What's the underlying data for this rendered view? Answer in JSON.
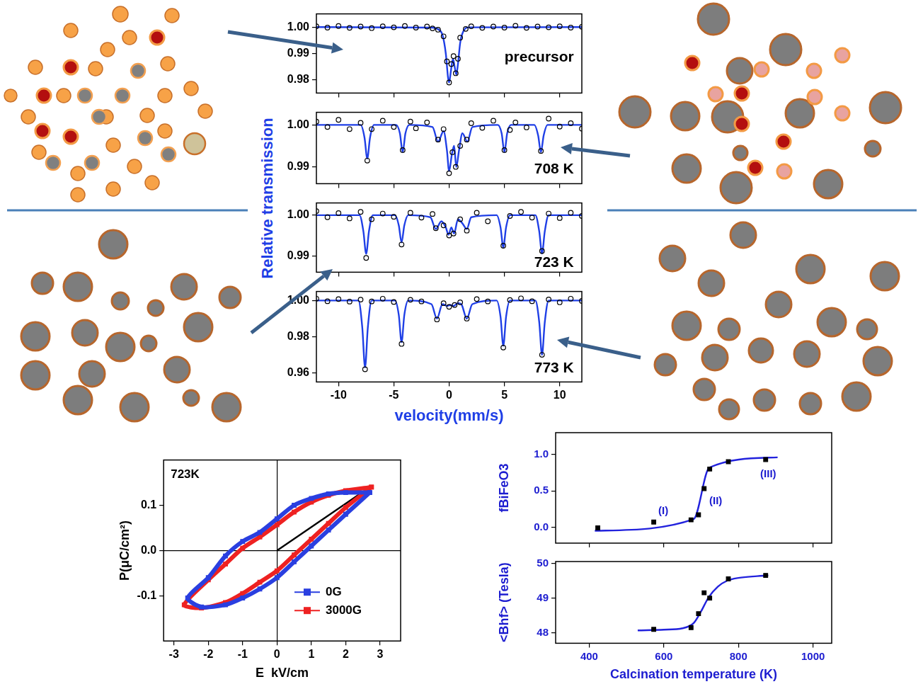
{
  "chart_data": [
    {
      "type": "line",
      "ylabel": "Relative transmission",
      "annotations": [
        "precursor"
      ],
      "xlim": [
        -12,
        12
      ],
      "xticks": [
        -10,
        -5,
        0,
        5,
        10
      ],
      "ylim": [
        0.975,
        1.005
      ],
      "yticks": [
        0.98,
        0.99,
        {
          "value": 1,
          "label": "1.00"
        }
      ],
      "tick_labels": "y",
      "series": [
        {
          "type": "scatter",
          "marker": "open_circle",
          "color": "#000000",
          "x": [
            -12,
            -11,
            -10,
            -9,
            -8,
            -7,
            -6,
            -5,
            -4,
            -3,
            -2,
            -1.5,
            -1,
            -0.5,
            -0.2,
            0,
            0.2,
            0.4,
            0.6,
            0.8,
            1,
            1.5,
            2,
            3,
            4,
            5,
            6,
            7,
            8,
            9,
            10,
            11,
            12
          ],
          "values": [
            1.0003,
            0.9998,
            1.0004,
            0.9997,
            1.0002,
            0.9996,
            1.0003,
            0.9999,
            1.0004,
            0.9998,
            1.0002,
            0.9995,
            0.999,
            0.9965,
            0.987,
            0.979,
            0.986,
            0.989,
            0.9825,
            0.988,
            0.996,
            0.9993,
            1.0003,
            0.9997,
            1.0002,
            0.9998,
            1.0005,
            0.9997,
            1.0002,
            0.9999,
            1.0003,
            0.9998,
            1.0001
          ]
        },
        {
          "type": "line",
          "color": "#1f3fe6",
          "x": [
            -12,
            -1.5,
            -1,
            -0.6,
            -0.3,
            -0.1,
            0,
            0.15,
            0.35,
            0.5,
            0.65,
            0.8,
            1.0,
            1.3,
            1.8,
            12
          ],
          "values": [
            1.0,
            0.9998,
            0.9992,
            0.997,
            0.99,
            0.981,
            0.979,
            0.983,
            0.988,
            0.985,
            0.982,
            0.986,
            0.994,
            0.9985,
            0.9999,
            1.0
          ]
        }
      ]
    },
    {
      "type": "line",
      "annotations": [
        "708 K"
      ],
      "xlim": [
        -12,
        12
      ],
      "xticks": [
        -10,
        -5,
        0,
        5,
        10
      ],
      "ylim": [
        0.986,
        1.003
      ],
      "yticks": [
        0.99,
        {
          "value": 1,
          "label": "1.00"
        }
      ],
      "tick_labels": "y",
      "series": [
        {
          "type": "scatter",
          "marker": "open_circle",
          "color": "#000000",
          "x": [
            -12,
            -11,
            -10,
            -9,
            -8,
            -7.4,
            -7,
            -6,
            -5,
            -4.2,
            -3.5,
            -3,
            -2,
            -1,
            -0.5,
            0,
            0.3,
            0.6,
            1,
            1.6,
            2,
            3,
            4,
            5,
            5.5,
            6,
            7,
            8.3,
            9,
            10,
            11,
            12
          ],
          "values": [
            1.0008,
            0.9995,
            1.0012,
            0.999,
            1.0005,
            0.9915,
            0.999,
            1.001,
            0.9995,
            0.994,
            1.0008,
            0.9992,
            1.0006,
            0.9965,
            0.999,
            0.9885,
            0.9935,
            0.99,
            0.995,
            0.9965,
            1.0004,
            0.9993,
            1.001,
            0.994,
            0.9988,
            1.0006,
            0.9994,
            0.9938,
            1.0015,
            0.9996,
            1.0004,
            0.9991
          ]
        },
        {
          "type": "line",
          "color": "#1f3fe6",
          "x": [
            -12,
            -8.0,
            -7.65,
            -7.4,
            -7.15,
            -6.8,
            -4.8,
            -4.45,
            -4.2,
            -3.95,
            -3.6,
            -1.5,
            -1.0,
            -0.5,
            -0.2,
            0,
            0.25,
            0.45,
            0.65,
            0.9,
            1.2,
            1.65,
            2.1,
            4.4,
            4.75,
            5.0,
            5.25,
            5.6,
            7.7,
            8.05,
            8.3,
            8.55,
            8.9,
            12
          ],
          "values": [
            1.0,
            1.0,
            0.997,
            0.992,
            0.997,
            1.0,
            1.0,
            0.998,
            0.9935,
            0.998,
            1.0,
            0.9995,
            0.996,
            0.9985,
            0.994,
            0.989,
            0.993,
            0.995,
            0.99,
            0.994,
            0.998,
            0.996,
            0.9995,
            1.0,
            0.998,
            0.9935,
            0.998,
            1.0,
            1.0,
            0.9975,
            0.9935,
            0.9975,
            1.0,
            1.0
          ]
        }
      ]
    },
    {
      "type": "line",
      "annotations": [
        "723 K"
      ],
      "xlim": [
        -12,
        12
      ],
      "xticks": [
        -10,
        -5,
        0,
        5,
        10
      ],
      "ylim": [
        0.986,
        1.003
      ],
      "yticks": [
        0.99,
        {
          "value": 1,
          "label": "1.00"
        }
      ],
      "tick_labels": "y",
      "series": [
        {
          "type": "scatter",
          "marker": "open_circle",
          "color": "#000000",
          "x": [
            -12,
            -11,
            -10,
            -9,
            -8,
            -7.5,
            -7,
            -6,
            -5,
            -4.3,
            -3.5,
            -2.5,
            -1.5,
            -1.2,
            -0.5,
            0,
            0.4,
            1,
            1.6,
            2.5,
            3.5,
            4.9,
            5.5,
            6.5,
            7.5,
            8.4,
            9,
            10,
            11,
            12
          ],
          "values": [
            1.001,
            0.9995,
            1.0005,
            0.9992,
            1.0008,
            0.9895,
            0.999,
            1.0004,
            0.9996,
            0.9928,
            1.0006,
            0.9994,
            1.0003,
            0.9968,
            0.9975,
            0.995,
            0.9955,
            0.999,
            0.9962,
            1.0006,
            0.9985,
            0.9925,
            0.9998,
            1.0008,
            0.9994,
            0.9912,
            1.0004,
            0.9993,
            1.0006,
            0.9998
          ]
        },
        {
          "type": "line",
          "color": "#1f3fe6",
          "x": [
            -12,
            -8.1,
            -7.75,
            -7.5,
            -7.25,
            -6.9,
            -4.9,
            -4.55,
            -4.3,
            -4.05,
            -3.7,
            -1.7,
            -1.2,
            -0.7,
            -0.3,
            -0.05,
            0.2,
            0.45,
            0.8,
            1.2,
            1.6,
            2.0,
            4.3,
            4.65,
            4.9,
            5.15,
            5.5,
            7.8,
            8.15,
            8.4,
            8.65,
            9.0,
            12
          ],
          "values": [
            1.0,
            1.0,
            0.996,
            0.9905,
            0.996,
            1.0,
            1.0,
            0.9975,
            0.9933,
            0.9975,
            1.0,
            0.9995,
            0.9966,
            0.9985,
            0.997,
            0.9952,
            0.997,
            0.9955,
            0.999,
            0.998,
            0.9966,
            0.9995,
            1.0,
            0.997,
            0.9921,
            0.997,
            1.0,
            1.0,
            0.996,
            0.9906,
            0.996,
            1.0,
            1.0
          ]
        }
      ]
    },
    {
      "type": "line",
      "annotations": [
        "773 K"
      ],
      "xlabel": "velocity(mm/s)",
      "xlim": [
        -12,
        12
      ],
      "xticks": [
        -10,
        -5,
        0,
        5,
        10
      ],
      "ylim": [
        0.955,
        1.005
      ],
      "yticks": [
        0.96,
        0.98,
        {
          "value": 1,
          "label": "1.00"
        }
      ],
      "series": [
        {
          "type": "scatter",
          "marker": "open_circle",
          "color": "#000000",
          "x": [
            -12,
            -11,
            -10,
            -9,
            -8,
            -7.6,
            -7,
            -6,
            -5,
            -4.3,
            -3.5,
            -2.5,
            -1.1,
            -0.5,
            0,
            0.5,
            1,
            1.6,
            2.5,
            3.5,
            4.9,
            5.5,
            6.5,
            7.5,
            8.4,
            9,
            10,
            11,
            12
          ],
          "values": [
            1.001,
            0.9996,
            1.0008,
            0.9994,
            1.0005,
            0.962,
            0.9995,
            1.001,
            0.9992,
            0.976,
            1.0004,
            0.9995,
            0.9895,
            0.9985,
            0.9965,
            0.9975,
            0.999,
            0.99,
            1.0008,
            0.9995,
            0.974,
            1.0003,
            1.0012,
            0.9996,
            0.97,
            1.0006,
            0.999,
            1.001,
            0.9998
          ]
        },
        {
          "type": "line",
          "color": "#1f3fe6",
          "x": [
            -12,
            -8.2,
            -7.85,
            -7.6,
            -7.35,
            -7.0,
            -4.9,
            -4.55,
            -4.3,
            -4.05,
            -3.7,
            -1.6,
            -1.1,
            -0.6,
            -0.2,
            0.1,
            0.4,
            0.8,
            1.1,
            1.6,
            2.1,
            4.3,
            4.65,
            4.9,
            5.15,
            5.5,
            7.8,
            8.15,
            8.4,
            8.65,
            9.0,
            12
          ],
          "values": [
            1.0,
            1.0,
            0.985,
            0.963,
            0.985,
            1.0,
            1.0,
            0.992,
            0.977,
            0.992,
            1.0,
            0.998,
            0.99,
            0.998,
            0.997,
            0.9975,
            0.997,
            0.9985,
            0.998,
            0.99,
            0.998,
            1.0,
            0.991,
            0.975,
            0.991,
            1.0,
            1.0,
            0.988,
            0.97,
            0.988,
            1.0,
            1.0
          ]
        }
      ]
    },
    {
      "type": "line",
      "annotations": [
        "723K"
      ],
      "xlabel": "E  kV/cm",
      "ylabel": "P(μC/cm²)",
      "xlim": [
        -3.3,
        3.6
      ],
      "xticks": [
        -3,
        -2,
        -1,
        0,
        1,
        2,
        3
      ],
      "ylim": [
        -0.2,
        0.2
      ],
      "yticks": [
        -0.1,
        {
          "value": 0,
          "label": "0.0"
        },
        0.1
      ],
      "legend": "lower right",
      "series": [
        {
          "name": "0G",
          "color": "#2a3fe0",
          "marker": "square",
          "x": [
            2.7,
            2.0,
            1.5,
            1.0,
            0.5,
            0,
            -0.5,
            -1.0,
            -1.5,
            -2.0,
            -2.6,
            -2.2,
            -1.5,
            -1.0,
            -0.5,
            0,
            0.5,
            1.0,
            1.5,
            2.0,
            2.7
          ],
          "values": [
            0.128,
            0.128,
            0.125,
            0.115,
            0.1,
            0.07,
            0.04,
            0.02,
            -0.012,
            -0.06,
            -0.105,
            -0.125,
            -0.12,
            -0.105,
            -0.085,
            -0.06,
            -0.025,
            0.01,
            0.045,
            0.08,
            0.128
          ]
        },
        {
          "name": "3000G",
          "color": "#ee2222",
          "marker": "square",
          "x": [
            2.75,
            2.0,
            1.5,
            1.0,
            0.5,
            0,
            -0.5,
            -1.0,
            -1.5,
            -2.0,
            -2.7,
            -2.2,
            -1.5,
            -1.0,
            -0.5,
            0,
            0.5,
            1.0,
            1.5,
            2.0,
            2.75
          ],
          "values": [
            0.14,
            0.132,
            0.122,
            0.107,
            0.085,
            0.057,
            0.03,
            0.005,
            -0.03,
            -0.065,
            -0.12,
            -0.127,
            -0.115,
            -0.095,
            -0.07,
            -0.045,
            -0.01,
            0.025,
            0.06,
            0.095,
            0.14
          ]
        },
        {
          "color": "#000000",
          "x": [
            0,
            2.7
          ],
          "values": [
            0,
            0.14
          ]
        }
      ]
    },
    {
      "type": "scatter",
      "ylabel": "fBiFeO3",
      "annotations": [
        "(I)",
        "(II)",
        "(III)"
      ],
      "xlim": [
        310,
        1050
      ],
      "xticks": [
        400,
        600,
        800,
        1000
      ],
      "ylim": [
        -0.22,
        1.3
      ],
      "yticks": [
        {
          "value": 0,
          "label": "0.0"
        },
        0.5,
        {
          "value": 1,
          "label": "1.0"
        }
      ],
      "tick_labels": "y",
      "series": [
        {
          "type": "scatter",
          "marker": "square",
          "color": "#000000",
          "x": [
            423,
            573,
            673,
            693,
            708,
            723,
            773,
            873
          ],
          "values": [
            -0.01,
            0.07,
            0.1,
            0.17,
            0.53,
            0.8,
            0.9,
            0.93
          ]
        },
        {
          "type": "line",
          "color": "#2222dd",
          "x": [
            415,
            680,
            722,
            905
          ],
          "values": [
            -0.05,
            0.11,
            0.82,
            0.96
          ]
        }
      ]
    },
    {
      "type": "scatter",
      "ylabel": "<Bhf> (Tesla)",
      "xlabel": "Calcination temperature (K)",
      "xlim": [
        310,
        1050
      ],
      "xticks": [
        400,
        600,
        800,
        1000
      ],
      "ylim": [
        47.7,
        50.05
      ],
      "yticks": [
        48,
        49,
        50
      ],
      "series": [
        {
          "type": "scatter",
          "marker": "square",
          "color": "#000000",
          "x": [
            573,
            673,
            693,
            708,
            723,
            773,
            873
          ],
          "values": [
            48.1,
            48.15,
            48.55,
            49.15,
            49.0,
            49.55,
            49.65
          ]
        },
        {
          "type": "line",
          "color": "#2222dd",
          "x": [
            530,
            600,
            650,
            680,
            700,
            720,
            745,
            770,
            800,
            850,
            880
          ],
          "values": [
            48.07,
            48.09,
            48.13,
            48.28,
            48.62,
            49.02,
            49.33,
            49.5,
            49.58,
            49.63,
            49.65
          ]
        }
      ]
    }
  ]
}
